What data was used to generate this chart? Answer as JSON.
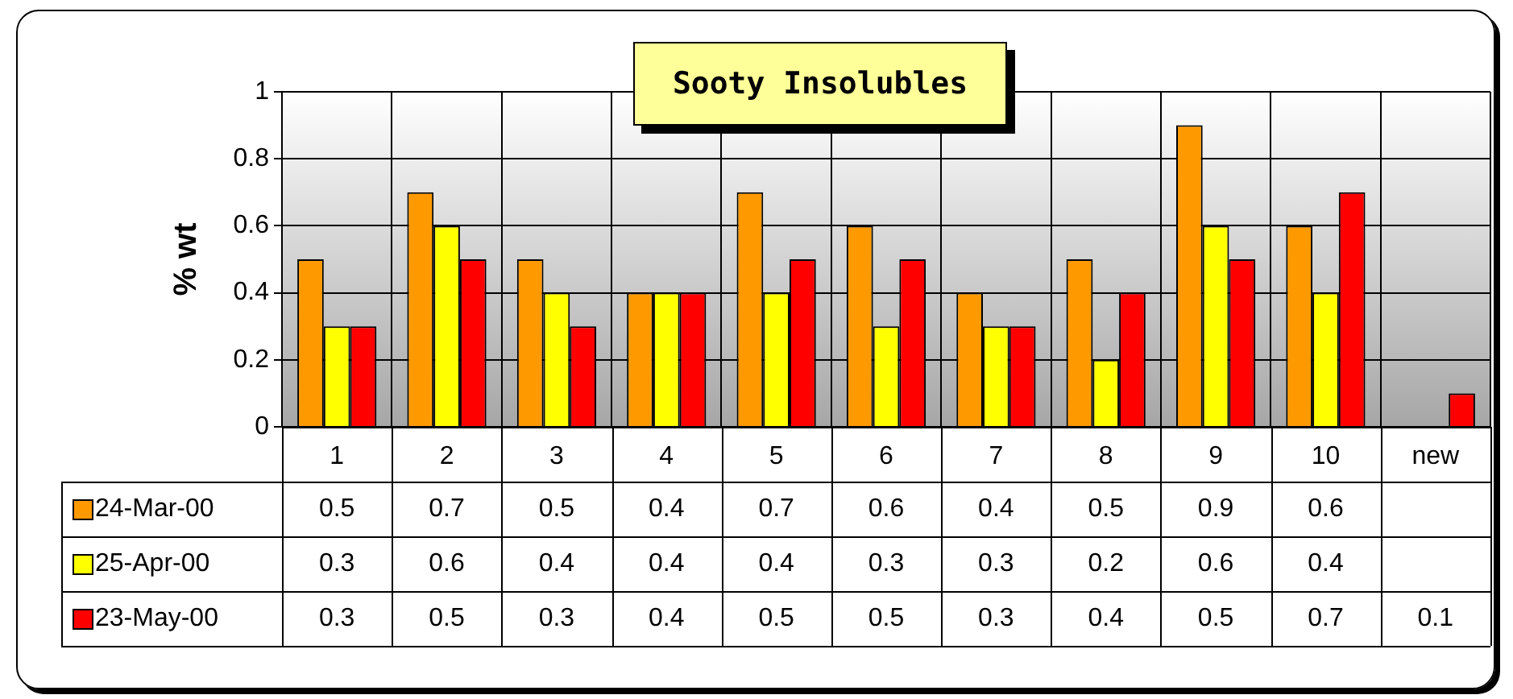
{
  "chart_data": {
    "type": "bar",
    "title": "Sooty Insolubles",
    "ylabel": "% wt",
    "categories": [
      "1",
      "2",
      "3",
      "4",
      "5",
      "6",
      "7",
      "8",
      "9",
      "10",
      "new"
    ],
    "series": [
      {
        "name": "24-Mar-00",
        "color": "#ff9900",
        "values": [
          0.5,
          0.7,
          0.5,
          0.4,
          0.7,
          0.6,
          0.4,
          0.5,
          0.9,
          0.6,
          null
        ]
      },
      {
        "name": "25-Apr-00",
        "color": "#ffff00",
        "values": [
          0.3,
          0.6,
          0.4,
          0.4,
          0.4,
          0.3,
          0.3,
          0.2,
          0.6,
          0.4,
          null
        ]
      },
      {
        "name": "23-May-00",
        "color": "#ff0000",
        "values": [
          0.3,
          0.5,
          0.3,
          0.4,
          0.5,
          0.5,
          0.3,
          0.4,
          0.5,
          0.7,
          0.1
        ]
      }
    ],
    "ylim": [
      0,
      1
    ],
    "yticks": [
      0,
      0.2,
      0.4,
      0.6,
      0.8,
      1
    ],
    "grid": true,
    "legend": "left",
    "data_labels": true
  }
}
